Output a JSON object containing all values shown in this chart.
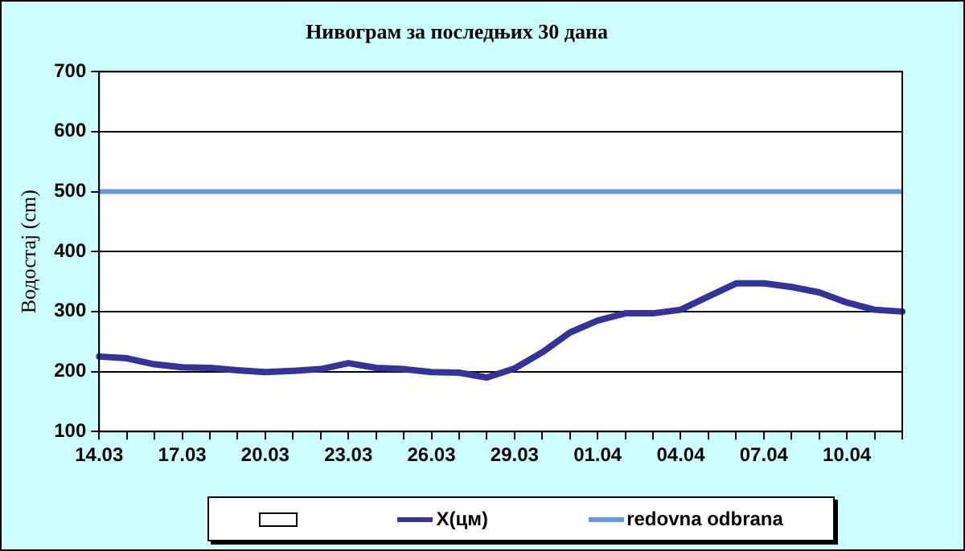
{
  "chart_data": {
    "type": "line",
    "title": "Нивограм за последњих 30 дана",
    "ylabel": "Водостај (cm)",
    "categories": [
      "14.03",
      null,
      null,
      "17.03",
      null,
      null,
      "20.03",
      null,
      null,
      "23.03",
      null,
      null,
      "26.03",
      null,
      null,
      "29.03",
      null,
      null,
      "01.04",
      null,
      null,
      "04.04",
      null,
      null,
      "07.04",
      null,
      null,
      "10.04",
      null,
      null
    ],
    "series": [
      {
        "name": "X(цм)",
        "color": "#333399",
        "values": [
          225,
          222,
          212,
          207,
          206,
          202,
          199,
          201,
          204,
          214,
          206,
          204,
          199,
          198,
          190,
          205,
          232,
          265,
          285,
          297,
          297,
          303,
          325,
          347,
          347,
          341,
          332,
          315,
          303,
          300
        ]
      }
    ],
    "ref_lines": [
      {
        "axis": "y",
        "value": 500,
        "label": "redovna odbrana",
        "color": "#6699dd"
      }
    ],
    "ylim": [
      100,
      700
    ],
    "yticks": [
      100,
      200,
      300,
      400,
      500,
      600,
      700
    ],
    "grid": "y",
    "legend": "bottom",
    "marker": "none",
    "line_style": "solid"
  }
}
